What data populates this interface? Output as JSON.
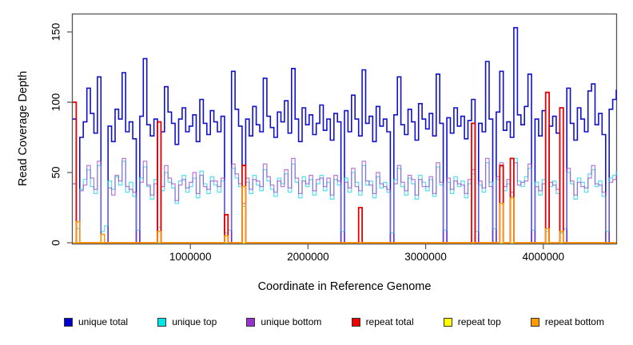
{
  "figure": {
    "background": "#ffffff"
  },
  "chart_data": {
    "type": "step-line",
    "title": "",
    "xlabel": "Coordinate in Reference Genome",
    "ylabel": "Read Coverage Depth",
    "xlim": [
      0,
      4620000
    ],
    "ylim": [
      0,
      155
    ],
    "grid": false,
    "legend_position": "bottom",
    "xticks": [
      1000000,
      2000000,
      3000000,
      4000000
    ],
    "xtick_labels": [
      "1000000",
      "2000000",
      "3000000",
      "4000000"
    ],
    "yticks": [
      0,
      50,
      100,
      150
    ],
    "ytick_labels": [
      "0",
      "50",
      "100",
      "150"
    ],
    "x_step": 30000,
    "n_points": 155,
    "series": [
      {
        "name": "unique total",
        "color": "#1111CC",
        "values": [
          88,
          0,
          75,
          86,
          110,
          92,
          78,
          118,
          0,
          0,
          83,
          72,
          95,
          88,
          121,
          79,
          86,
          74,
          0,
          90,
          131,
          84,
          76,
          88,
          0,
          79,
          111,
          93,
          85,
          70,
          88,
          96,
          79,
          83,
          91,
          72,
          102,
          85,
          77,
          94,
          86,
          79,
          90,
          0,
          0,
          122,
          95,
          83,
          55,
          88,
          76,
          97,
          84,
          79,
          117,
          90,
          82,
          75,
          93,
          86,
          101,
          78,
          124,
          88,
          72,
          96,
          84,
          91,
          77,
          85,
          98,
          80,
          88,
          73,
          92,
          86,
          0,
          94,
          79,
          105,
          88,
          76,
          123,
          85,
          90,
          72,
          97,
          83,
          88,
          79,
          0,
          91,
          118,
          84,
          77,
          95,
          86,
          73,
          99,
          88,
          81,
          92,
          76,
          120,
          85,
          0,
          89,
          78,
          96,
          83,
          90,
          74,
          87,
          102,
          0,
          85,
          79,
          129,
          88,
          0,
          93,
          122,
          80,
          86,
          75,
          153,
          91,
          84,
          97,
          120,
          0,
          88,
          76,
          94,
          0,
          83,
          90,
          78,
          0,
          0,
          110,
          85,
          73,
          96,
          88,
          79,
          108,
          113,
          84,
          92,
          77,
          0,
          95,
          102,
          109
        ]
      },
      {
        "name": "unique top",
        "color": "#2FD8EC",
        "values": [
          42,
          10,
          38,
          45,
          52,
          40,
          35,
          55,
          8,
          12,
          44,
          38,
          47,
          41,
          58,
          36,
          43,
          33,
          9,
          46,
          54,
          40,
          31,
          45,
          11,
          37,
          50,
          43,
          39,
          28,
          44,
          48,
          36,
          40,
          46,
          32,
          51,
          42,
          35,
          47,
          41,
          36,
          44,
          7,
          9,
          53,
          46,
          40,
          26,
          43,
          35,
          48,
          41,
          37,
          52,
          44,
          38,
          33,
          46,
          42,
          49,
          36,
          56,
          43,
          32,
          47,
          40,
          45,
          34,
          42,
          48,
          37,
          43,
          31,
          45,
          41,
          8,
          46,
          36,
          50,
          43,
          34,
          55,
          41,
          44,
          32,
          47,
          39,
          43,
          36,
          7,
          45,
          53,
          40,
          34,
          46,
          42,
          31,
          48,
          43,
          37,
          45,
          33,
          54,
          41,
          9,
          43,
          35,
          47,
          40,
          44,
          32,
          42,
          49,
          8,
          41,
          36,
          57,
          43,
          10,
          45,
          54,
          37,
          42,
          33,
          60,
          44,
          40,
          47,
          53,
          9,
          43,
          34,
          45,
          8,
          40,
          44,
          35,
          7,
          10,
          50,
          42,
          31,
          46,
          43,
          36,
          49,
          52,
          40,
          44,
          33,
          8,
          46,
          48,
          51
        ]
      },
      {
        "name": "unique bottom",
        "color": "#9944CC",
        "values": [
          42,
          0,
          37,
          41,
          55,
          46,
          38,
          58,
          0,
          0,
          39,
          34,
          48,
          44,
          60,
          40,
          38,
          36,
          0,
          43,
          58,
          41,
          34,
          42,
          0,
          40,
          55,
          46,
          42,
          30,
          41,
          45,
          39,
          43,
          50,
          35,
          48,
          40,
          38,
          44,
          44,
          40,
          46,
          0,
          0,
          56,
          49,
          42,
          28,
          46,
          38,
          45,
          44,
          40,
          56,
          47,
          41,
          36,
          44,
          40,
          52,
          39,
          60,
          46,
          35,
          44,
          42,
          48,
          37,
          45,
          46,
          40,
          46,
          34,
          48,
          44,
          0,
          43,
          39,
          53,
          40,
          37,
          58,
          44,
          41,
          35,
          50,
          42,
          40,
          38,
          0,
          42,
          55,
          43,
          37,
          48,
          45,
          34,
          45,
          40,
          40,
          47,
          35,
          57,
          43,
          0,
          46,
          38,
          44,
          42,
          41,
          35,
          45,
          52,
          0,
          44,
          39,
          60,
          40,
          0,
          47,
          57,
          40,
          45,
          36,
          57,
          41,
          43,
          44,
          56,
          0,
          40,
          37,
          42,
          0,
          43,
          41,
          38,
          0,
          0,
          53,
          44,
          34,
          43,
          40,
          39,
          46,
          55,
          42,
          41,
          36,
          0,
          43,
          45,
          48
        ]
      },
      {
        "name": "repeat total",
        "color": "#E60000",
        "spikes": {
          "0": 100,
          "24": 86,
          "43": 20,
          "48": 55,
          "81": 25,
          "113": 85,
          "121": 55,
          "124": 60,
          "134": 107,
          "138": 96
        }
      },
      {
        "name": "repeat top",
        "color": "#FFEE00",
        "spikes": {}
      },
      {
        "name": "repeat bottom",
        "color": "#FF9900",
        "spikes": {
          "1": 15,
          "8": 6,
          "24": 8,
          "43": 5,
          "48": 40,
          "121": 28,
          "124": 32,
          "134": 10,
          "138": 8
        }
      }
    ]
  },
  "legend": {
    "items": [
      {
        "label": "unique total",
        "color": "#0000CC"
      },
      {
        "label": "unique top",
        "color": "#00E5E5"
      },
      {
        "label": "unique bottom",
        "color": "#9932CC"
      },
      {
        "label": "repeat total",
        "color": "#EE0000"
      },
      {
        "label": "repeat top",
        "color": "#FFFF00"
      },
      {
        "label": "repeat bottom",
        "color": "#FF9900"
      }
    ]
  }
}
